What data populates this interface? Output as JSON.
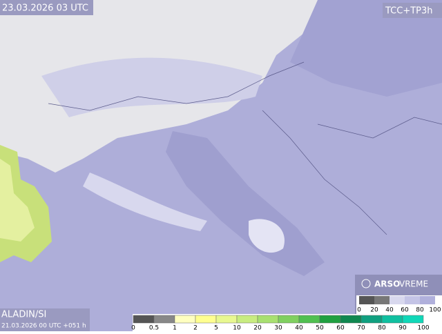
{
  "header": {
    "datetime": "23.03.2026 03 UTC",
    "product": "TCC+TP3h"
  },
  "footer": {
    "model": "ALADIN/SI",
    "run": "21.03.2026 00 UTC +051 h"
  },
  "logo": {
    "brand": "ARSO",
    "name": "VREME"
  },
  "cloud_scale": {
    "labels": [
      0,
      20,
      40,
      60,
      80,
      100
    ]
  },
  "precip_scale": {
    "labels": [
      0,
      0.5,
      1,
      2,
      5,
      10,
      20,
      30,
      40,
      50,
      60,
      70,
      80,
      90,
      100
    ]
  }
}
